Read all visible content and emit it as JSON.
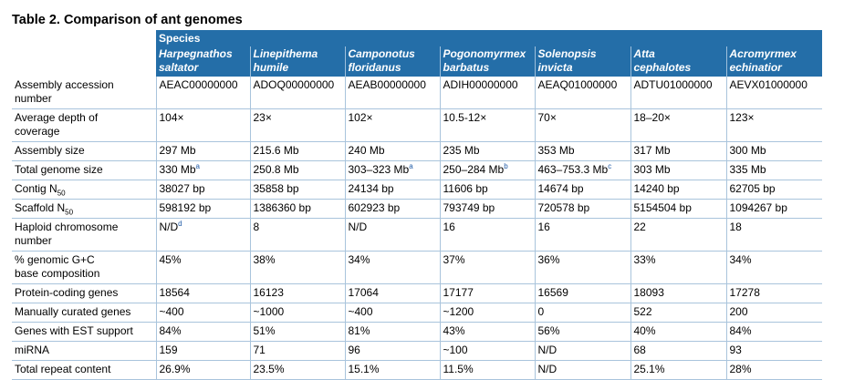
{
  "table": {
    "title": "Table 2. Comparison of ant genomes",
    "species_header": "Species",
    "species": [
      [
        "Harpegnathos",
        "saltator"
      ],
      [
        "Linepithema",
        "humile"
      ],
      [
        "Camponotus",
        "floridanus"
      ],
      [
        "Pogonomyrmex",
        "barbatus"
      ],
      [
        "Solenopsis",
        "invicta"
      ],
      [
        "Atta",
        "cephalotes"
      ],
      [
        "Acromyrmex",
        "echinatior"
      ]
    ],
    "rows": [
      {
        "label": [
          "Assembly accession",
          "number"
        ],
        "values": [
          "AEAC00000000",
          "ADOQ00000000",
          "AEAB00000000",
          "ADIH00000000",
          "AEAQ01000000",
          "ADTU01000000",
          "AEVX01000000"
        ],
        "tall": true
      },
      {
        "label": [
          "Average depth of",
          "coverage"
        ],
        "values": [
          "104×",
          "23×",
          "102×",
          "10.5-12×",
          "70×",
          "18–20×",
          "123×"
        ],
        "tall": true
      },
      {
        "label": [
          "Assembly size"
        ],
        "values": [
          "297 Mb",
          "215.6 Mb",
          "240 Mb",
          "235 Mb",
          "353 Mb",
          "317 Mb",
          "300 Mb"
        ]
      },
      {
        "label": [
          "Total genome size"
        ],
        "values": [
          "330 Mb",
          "250.8 Mb",
          "303–323 Mb",
          "250–284 Mb",
          "463–753.3 Mb",
          "303 Mb",
          "335 Mb"
        ],
        "sups": [
          "a",
          "",
          "a",
          "b",
          "c",
          "",
          ""
        ]
      },
      {
        "label": [
          "Contig N",
          "50"
        ],
        "sub_label": true,
        "values": [
          "38027 bp",
          "35858 bp",
          "24134 bp",
          "11606 bp",
          "14674 bp",
          "14240 bp",
          "62705 bp"
        ]
      },
      {
        "label": [
          "Scaffold N",
          "50"
        ],
        "sub_label": true,
        "values": [
          "598192 bp",
          "1386360 bp",
          "602923 bp",
          "793749 bp",
          "720578 bp",
          "5154504 bp",
          "1094267 bp"
        ]
      },
      {
        "label": [
          "Haploid chromosome",
          "number"
        ],
        "values": [
          "N/D",
          "8",
          "N/D",
          "16",
          "16",
          "22",
          "18"
        ],
        "sups": [
          "d",
          "",
          "",
          "",
          "",
          "",
          ""
        ],
        "tall": true
      },
      {
        "label": [
          "% genomic G+C",
          "base composition"
        ],
        "values": [
          "45%",
          "38%",
          "34%",
          "37%",
          "36%",
          "33%",
          "34%"
        ],
        "tall": true
      },
      {
        "label": [
          "Protein-coding genes"
        ],
        "values": [
          "18564",
          "16123",
          "17064",
          "17177",
          "16569",
          "18093",
          "17278"
        ]
      },
      {
        "label": [
          "Manually curated genes"
        ],
        "values": [
          "~400",
          "~1000",
          "~400",
          "~1200",
          "0",
          "522",
          "200"
        ]
      },
      {
        "label": [
          "Genes with EST support"
        ],
        "values": [
          "84%",
          "51%",
          "81%",
          "43%",
          "56%",
          "40%",
          "84%"
        ]
      },
      {
        "label": [
          "miRNA"
        ],
        "values": [
          "159",
          "71",
          "96",
          "~100",
          "N/D",
          "68",
          "93"
        ]
      },
      {
        "label": [
          "Total repeat content"
        ],
        "values": [
          "26.9%",
          "23.5%",
          "15.1%",
          "11.5%",
          "N/D",
          "25.1%",
          "28%"
        ]
      }
    ]
  }
}
